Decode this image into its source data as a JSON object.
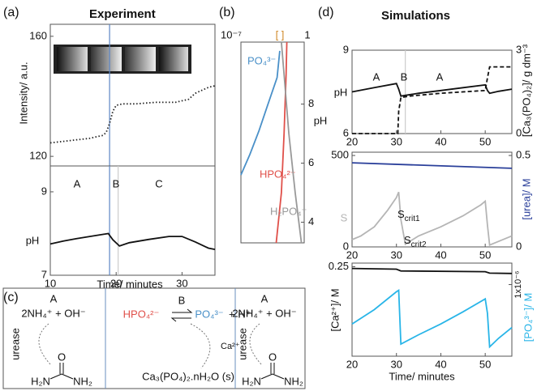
{
  "panel_a": {
    "label": "(a)",
    "title": "Experiment",
    "intensity": {
      "ylabel": "Intensity/ a.u.",
      "xlim": [
        10,
        35
      ],
      "ylim": [
        116.8,
        164
      ],
      "yticks": [
        120,
        160
      ],
      "markers": [
        {
          "x": 19,
          "color": "#5b86c4"
        }
      ],
      "series": [
        {
          "color": "#222222",
          "dash": "1.5 2.5",
          "x": [
            10,
            12,
            14,
            16,
            17,
            18,
            18.5,
            19,
            19.5,
            20,
            21,
            23,
            26,
            29,
            30,
            31,
            32,
            33,
            34,
            35
          ],
          "values": [
            124.5,
            125,
            125.5,
            126,
            126.5,
            127,
            128,
            131,
            135,
            137,
            137.5,
            137.5,
            138,
            138,
            138.5,
            139,
            141,
            142,
            143,
            143.5
          ]
        }
      ]
    },
    "ph": {
      "ylabel": "pH",
      "xlabel": "Time/ minutes",
      "xlim": [
        10,
        35
      ],
      "ylim": [
        7,
        9.62
      ],
      "yticks": [
        7,
        9
      ],
      "xticks": [
        10,
        20,
        30
      ],
      "regions": [
        "A",
        "B",
        "C"
      ],
      "markers": [
        {
          "x": 19,
          "color": "#5b86c4"
        },
        {
          "x": 20.3,
          "color": "#cccccc"
        }
      ],
      "series": [
        {
          "color": "#111111",
          "x": [
            10,
            12,
            14,
            16,
            18,
            18.8,
            19.5,
            20.5,
            22,
            25,
            28,
            30,
            32,
            34,
            35
          ],
          "values": [
            7.75,
            7.82,
            7.88,
            7.93,
            7.98,
            8.0,
            7.85,
            7.7,
            7.78,
            7.86,
            7.93,
            7.93,
            7.8,
            7.65,
            7.62
          ]
        }
      ]
    }
  },
  "panel_b": {
    "label": "(b)",
    "xlabel": "[ ]",
    "xlog": true,
    "xlim": [
      1e-07,
      1
    ],
    "xticks": [
      {
        "value": 1e-07,
        "label": "10⁻⁷"
      },
      1
    ],
    "y2label": "pH",
    "y2lim": [
      3.3,
      10.1
    ],
    "y2ticks": [
      4,
      6,
      8
    ],
    "series": [
      {
        "name": "PO₄³⁻",
        "color": "#4a90c8",
        "axis": "y2",
        "x": [
          1e-07,
          1e-06,
          1e-05,
          0.0001,
          0.001,
          0.002
        ],
        "values": [
          5.6,
          6.3,
          7.1,
          8.0,
          8.9,
          9.8
        ]
      },
      {
        "name": "HPO₄²⁻",
        "color": "#e0504a",
        "axis": "y2",
        "x": [
          0.0008,
          0.003,
          0.006,
          0.01,
          0.012
        ],
        "values": [
          3.3,
          5,
          7,
          9,
          10.1
        ]
      },
      {
        "name": "H₂PO₄⁻",
        "color": "#999999",
        "axis": "y2",
        "x": [
          0.003,
          0.006,
          0.02,
          0.1,
          0.5
        ],
        "values": [
          10.1,
          9,
          7,
          5,
          3.3
        ]
      }
    ]
  },
  "panel_c": {
    "label": "(c)",
    "left": {
      "state": "A",
      "species": "2NH₄⁺ + OH⁻",
      "enzyme": "urease",
      "urea": {
        "o": "O",
        "left": "H₂N",
        "right": "NH₂"
      }
    },
    "middle": {
      "state": "B",
      "reactant": "HPO₄²⁻",
      "product": "PO₄³⁻",
      "product_rest": "+ H⁺",
      "ion": "Ca²⁺",
      "precipitate": "Ca₃(PO₄)₂.nH₂O (s)"
    },
    "right": {
      "state": "A",
      "species": "2NH₄⁺ + OH⁻",
      "enzyme": "urease",
      "urea": {
        "o": "O",
        "left": "H₂N",
        "right": "NH₂"
      }
    }
  },
  "panel_d": {
    "label": "(d)",
    "title": "Simulations",
    "ph": {
      "ylabel": "pH",
      "y2label": "[Ca₃(PO₄)₂]/ g dm⁻³",
      "xlim": [
        20,
        56
      ],
      "xticks": [
        20,
        30,
        40,
        50
      ],
      "ylim": [
        6,
        9
      ],
      "yticks": [
        6,
        9
      ],
      "y2lim": [
        0,
        3
      ],
      "y2ticks": [
        0,
        3
      ],
      "regions": [
        "A",
        "B",
        "A"
      ],
      "markers": [
        {
          "x": 32,
          "color": "#cccccc"
        }
      ],
      "series": [
        {
          "color": "#111111",
          "x": [
            20,
            25,
            30,
            30.5,
            31,
            35,
            40,
            45,
            50,
            50.5,
            51,
            53,
            56
          ],
          "values": [
            7.5,
            7.65,
            7.8,
            7.6,
            7.35,
            7.45,
            7.55,
            7.65,
            7.75,
            7.55,
            7.45,
            7.52,
            7.6
          ]
        },
        {
          "color": "#111111",
          "dash": "5 3",
          "axis": "y2",
          "x": [
            20,
            30.3,
            30.5,
            31,
            33,
            40,
            50,
            50.5,
            51,
            56
          ],
          "values": [
            0,
            0,
            0.8,
            1.3,
            1.35,
            1.45,
            1.55,
            2.0,
            2.4,
            2.4
          ]
        }
      ]
    },
    "supersaturation": {
      "ylabel": "S",
      "y2label": "[urea]/ M",
      "xlim": [
        20,
        56
      ],
      "xticks": [
        20,
        30,
        40,
        50
      ],
      "ylim": [
        0,
        518
      ],
      "yticks": [
        0,
        500
      ],
      "y2lim": [
        0,
        0.518
      ],
      "y2ticks": [
        0,
        0.5
      ],
      "annotations": [
        {
          "main": "S",
          "sub": "crit1"
        },
        {
          "main": "S",
          "sub": "crit2"
        }
      ],
      "series": [
        {
          "color": "#b5b5b5",
          "x": [
            20,
            22,
            25,
            28,
            30,
            30.5,
            31,
            32,
            35,
            40,
            45,
            49,
            50,
            50.5,
            51,
            53,
            56
          ],
          "values": [
            40,
            60,
            110,
            200,
            270,
            300,
            150,
            15,
            60,
            110,
            170,
            230,
            250,
            120,
            10,
            30,
            60
          ]
        },
        {
          "color": "#2a3f9a",
          "axis": "y2",
          "x": [
            20,
            56
          ],
          "values": [
            0.46,
            0.43
          ]
        }
      ]
    },
    "concentrations": {
      "ylabel": "[Ca²⁺]/ M",
      "y2label": "[PO₄³⁻]/ M",
      "xlabel": "Time/ minutes",
      "xlim": [
        20,
        56
      ],
      "xticks": [
        20,
        30,
        40,
        50
      ],
      "ylim": [
        0,
        0.26
      ],
      "yticks": [
        0.25
      ],
      "y2lim": [
        0,
        1.3e-06
      ],
      "y2ticks": [
        {
          "value": 1e-06,
          "label": "1x10⁻⁶"
        }
      ],
      "series": [
        {
          "color": "#111111",
          "x": [
            20,
            30,
            31,
            50,
            51,
            56
          ],
          "values": [
            0.245,
            0.243,
            0.238,
            0.236,
            0.232,
            0.231
          ]
        },
        {
          "color": "#29b5e8",
          "axis": "y2",
          "x": [
            20,
            25,
            30,
            30.5,
            31,
            35,
            40,
            45,
            50,
            50.5,
            51,
            53,
            56
          ],
          "values": [
            4.5e-07,
            6.5e-07,
            9e-07,
            9.2e-07,
            1.7e-07,
            3e-07,
            4.5e-07,
            6.2e-07,
            8e-07,
            6e-07,
            1.3e-07,
            2.5e-07,
            4e-07
          ]
        }
      ]
    }
  }
}
